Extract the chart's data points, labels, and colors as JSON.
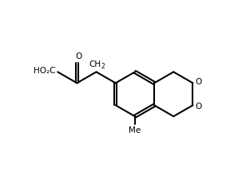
{
  "bg_color": "#ffffff",
  "line_color": "#000000",
  "line_width": 1.5,
  "font_size": 7.5,
  "figsize": [
    3.13,
    2.15
  ],
  "dpi": 100,
  "xlim": [
    0,
    10
  ],
  "ylim": [
    0,
    6.5
  ]
}
